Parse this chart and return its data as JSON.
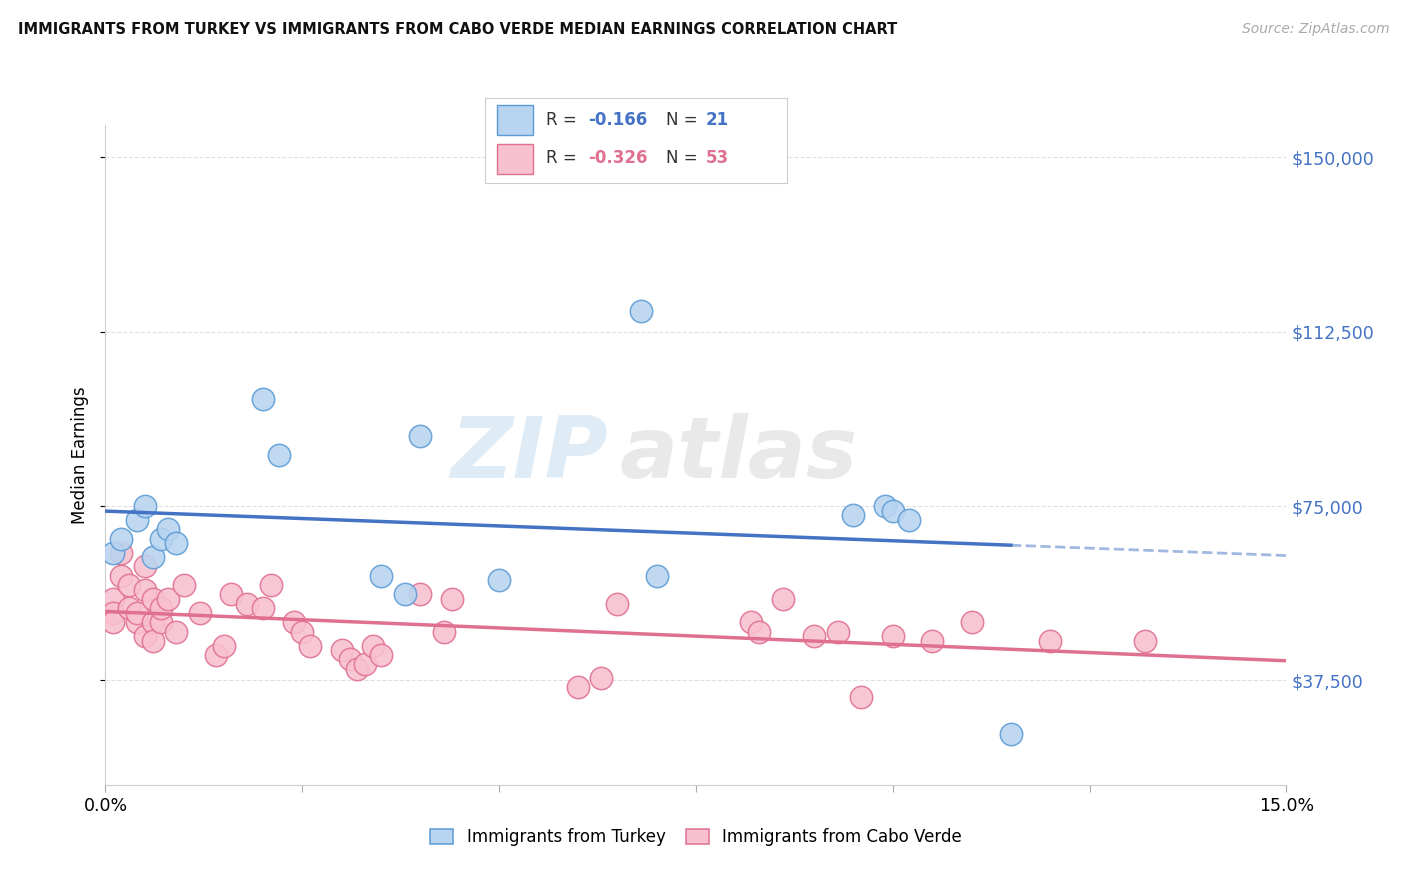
{
  "title": "IMMIGRANTS FROM TURKEY VS IMMIGRANTS FROM CABO VERDE MEDIAN EARNINGS CORRELATION CHART",
  "source": "Source: ZipAtlas.com",
  "ylabel": "Median Earnings",
  "xlim": [
    0.0,
    0.15
  ],
  "ylim": [
    15000,
    157000
  ],
  "yticks": [
    37500,
    75000,
    112500,
    150000
  ],
  "ytick_labels": [
    "$37,500",
    "$75,000",
    "$112,500",
    "$150,000"
  ],
  "legend_r_turkey": "-0.166",
  "legend_n_turkey": "21",
  "legend_r_cabo": "-0.326",
  "legend_n_cabo": "53",
  "turkey_fill": "#b8d4f0",
  "turkey_edge": "#5b9bd5",
  "cabo_fill": "#f8c0d0",
  "cabo_edge": "#e07090",
  "turkey_line_color": "#4472C4",
  "cabo_line_color": "#E07090",
  "turkey_x": [
    0.001,
    0.002,
    0.004,
    0.005,
    0.006,
    0.007,
    0.008,
    0.009,
    0.02,
    0.022,
    0.035,
    0.038,
    0.04,
    0.05,
    0.068,
    0.07,
    0.095,
    0.099,
    0.1,
    0.102,
    0.115
  ],
  "turkey_y": [
    65000,
    68000,
    72000,
    75000,
    64000,
    68000,
    70000,
    67000,
    98000,
    86000,
    60000,
    56000,
    90000,
    59000,
    117000,
    60000,
    73000,
    75000,
    74000,
    72000,
    26000
  ],
  "cabo_x": [
    0.001,
    0.001,
    0.001,
    0.002,
    0.002,
    0.003,
    0.003,
    0.004,
    0.004,
    0.005,
    0.005,
    0.005,
    0.006,
    0.006,
    0.006,
    0.007,
    0.007,
    0.008,
    0.009,
    0.01,
    0.012,
    0.014,
    0.015,
    0.016,
    0.018,
    0.02,
    0.021,
    0.024,
    0.025,
    0.026,
    0.03,
    0.031,
    0.032,
    0.033,
    0.034,
    0.035,
    0.04,
    0.043,
    0.044,
    0.06,
    0.063,
    0.065,
    0.082,
    0.083,
    0.086,
    0.09,
    0.093,
    0.096,
    0.1,
    0.105,
    0.11,
    0.12,
    0.132
  ],
  "cabo_y": [
    55000,
    52000,
    50000,
    65000,
    60000,
    58000,
    53000,
    50000,
    52000,
    47000,
    57000,
    62000,
    55000,
    50000,
    46000,
    50000,
    53000,
    55000,
    48000,
    58000,
    52000,
    43000,
    45000,
    56000,
    54000,
    53000,
    58000,
    50000,
    48000,
    45000,
    44000,
    42000,
    40000,
    41000,
    45000,
    43000,
    56000,
    48000,
    55000,
    36000,
    38000,
    54000,
    50000,
    48000,
    55000,
    47000,
    48000,
    34000,
    47000,
    46000,
    50000,
    46000,
    46000
  ],
  "watermark": "ZIPatlas",
  "background_color": "#ffffff",
  "grid_color": "#e0e0e0"
}
